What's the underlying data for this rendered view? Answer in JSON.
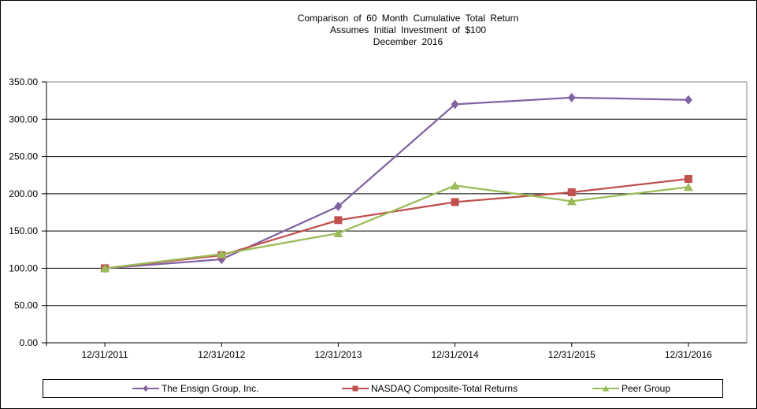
{
  "chart_data": {
    "type": "line",
    "title_lines": [
      "Comparison of 60 Month Cumulative Total Return",
      "Assumes Initial Investment of $100",
      "December 2016"
    ],
    "categories": [
      "12/31/2011",
      "12/31/2012",
      "12/31/2013",
      "12/31/2014",
      "12/31/2015",
      "12/31/2016"
    ],
    "series": [
      {
        "name": "The Ensign Group, Inc.",
        "marker": "diamond",
        "color": "#8064A2",
        "values": [
          100.0,
          112.0,
          183.0,
          320.0,
          329.0,
          326.0
        ]
      },
      {
        "name": "NASDAQ Composite-Total Returns",
        "marker": "square",
        "color": "#C0504D",
        "values": [
          100.0,
          117.45,
          164.57,
          188.84,
          201.98,
          219.89
        ]
      },
      {
        "name": "Peer Group",
        "marker": "triangle",
        "color": "#9BBB59",
        "values": [
          100.0,
          119.0,
          147.0,
          211.0,
          190.0,
          209.0
        ]
      }
    ],
    "xlabel": "",
    "ylabel": "",
    "ylim": [
      0,
      350
    ],
    "ytick_step": 50,
    "ytick_labels": [
      "0.00",
      "50.00",
      "100.00",
      "150.00",
      "200.00",
      "250.00",
      "300.00",
      "350.00"
    ],
    "grid": true,
    "legend_position": "bottom",
    "axis_color": "#000000",
    "gridline_color": "#000000",
    "plot_border_color": "#808080"
  }
}
